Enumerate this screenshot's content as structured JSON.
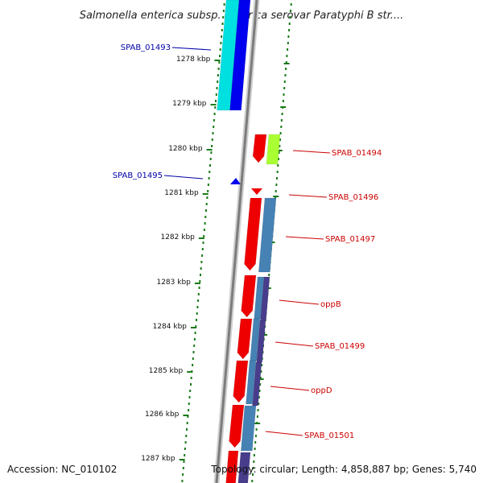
{
  "title": "Salmonella enterica subsp. enterica serovar Paratyphi B str....",
  "footer": {
    "accession": "Accession: NC_010102",
    "topology": "Topology: circular; Length: 4,858,887 bp; Genes: 5,740"
  },
  "colors": {
    "backbone": "#808080",
    "tick": "#1a7a1a",
    "label_left": "#0000aa",
    "label_right": "#cc0000",
    "gene_red": "#ee0000",
    "gene_cyan": "#00e0e0",
    "gene_blue": "#0000ee",
    "gene_lime": "#aaff33",
    "gene_steel": "#4682b4",
    "gene_purple": "#483d8b"
  },
  "ticks": [
    "1278 kbp",
    "1279 kbp",
    "1280 kbp",
    "1281 kbp",
    "1282 kbp",
    "1283 kbp",
    "1284 kbp",
    "1285 kbp",
    "1286 kbp",
    "1287 kbp"
  ],
  "gene_labels": [
    {
      "name": "SPAB_01493",
      "side": "left"
    },
    {
      "name": "SPAB_01495",
      "side": "left"
    },
    {
      "name": "SPAB_01494",
      "side": "right"
    },
    {
      "name": "SPAB_01496",
      "side": "right"
    },
    {
      "name": "SPAB_01497",
      "side": "right"
    },
    {
      "name": "oppB",
      "side": "right"
    },
    {
      "name": "SPAB_01499",
      "side": "right"
    },
    {
      "name": "oppD",
      "side": "right"
    },
    {
      "name": "SPAB_01501",
      "side": "right"
    }
  ]
}
